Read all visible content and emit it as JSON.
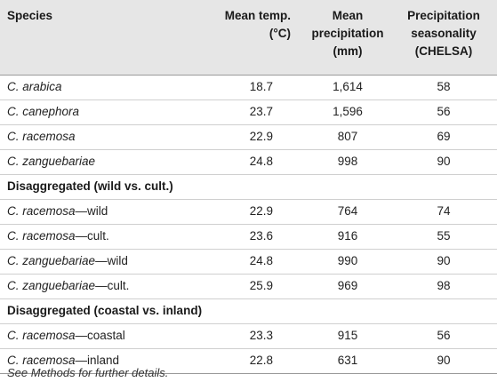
{
  "table": {
    "headers": {
      "species": "Species",
      "mean_temp": [
        "Mean temp.",
        "(°C)"
      ],
      "mean_precip": [
        "Mean",
        "precipitation",
        "(mm)"
      ],
      "precip_seasonality": [
        "Precipitation",
        "seasonality",
        "(CHELSA)"
      ]
    },
    "rows": [
      {
        "species": "C. arabica",
        "suffix": "",
        "temp": "18.7",
        "precip": "1,614",
        "season": "58"
      },
      {
        "species": "C. canephora",
        "suffix": "",
        "temp": "23.7",
        "precip": "1,596",
        "season": "56"
      },
      {
        "species": "C. racemosa",
        "suffix": "",
        "temp": "22.9",
        "precip": "807",
        "season": "69"
      },
      {
        "species": "C. zanguebariae",
        "suffix": "",
        "temp": "24.8",
        "precip": "998",
        "season": "90"
      }
    ],
    "section_wild_cult": "Disaggregated (wild vs. cult.)",
    "rows_wild_cult": [
      {
        "species": "C. racemosa",
        "suffix": "—wild",
        "temp": "22.9",
        "precip": "764",
        "season": "74"
      },
      {
        "species": "C. racemosa",
        "suffix": "—cult.",
        "temp": "23.6",
        "precip": "916",
        "season": "55"
      },
      {
        "species": "C. zanguebariae",
        "suffix": "—wild",
        "temp": "24.8",
        "precip": "990",
        "season": "90"
      },
      {
        "species": "C. zanguebariae",
        "suffix": "—cult.",
        "temp": "25.9",
        "precip": "969",
        "season": "98"
      }
    ],
    "section_coastal_inland": "Disaggregated (coastal vs. inland)",
    "rows_coastal_inland": [
      {
        "species": "C. racemosa",
        "suffix": "—coastal",
        "temp": "23.3",
        "precip": "915",
        "season": "56"
      },
      {
        "species": "C. racemosa",
        "suffix": "—inland",
        "temp": "22.8",
        "precip": "631",
        "season": "90"
      }
    ]
  },
  "footnote": "See Methods for further details."
}
